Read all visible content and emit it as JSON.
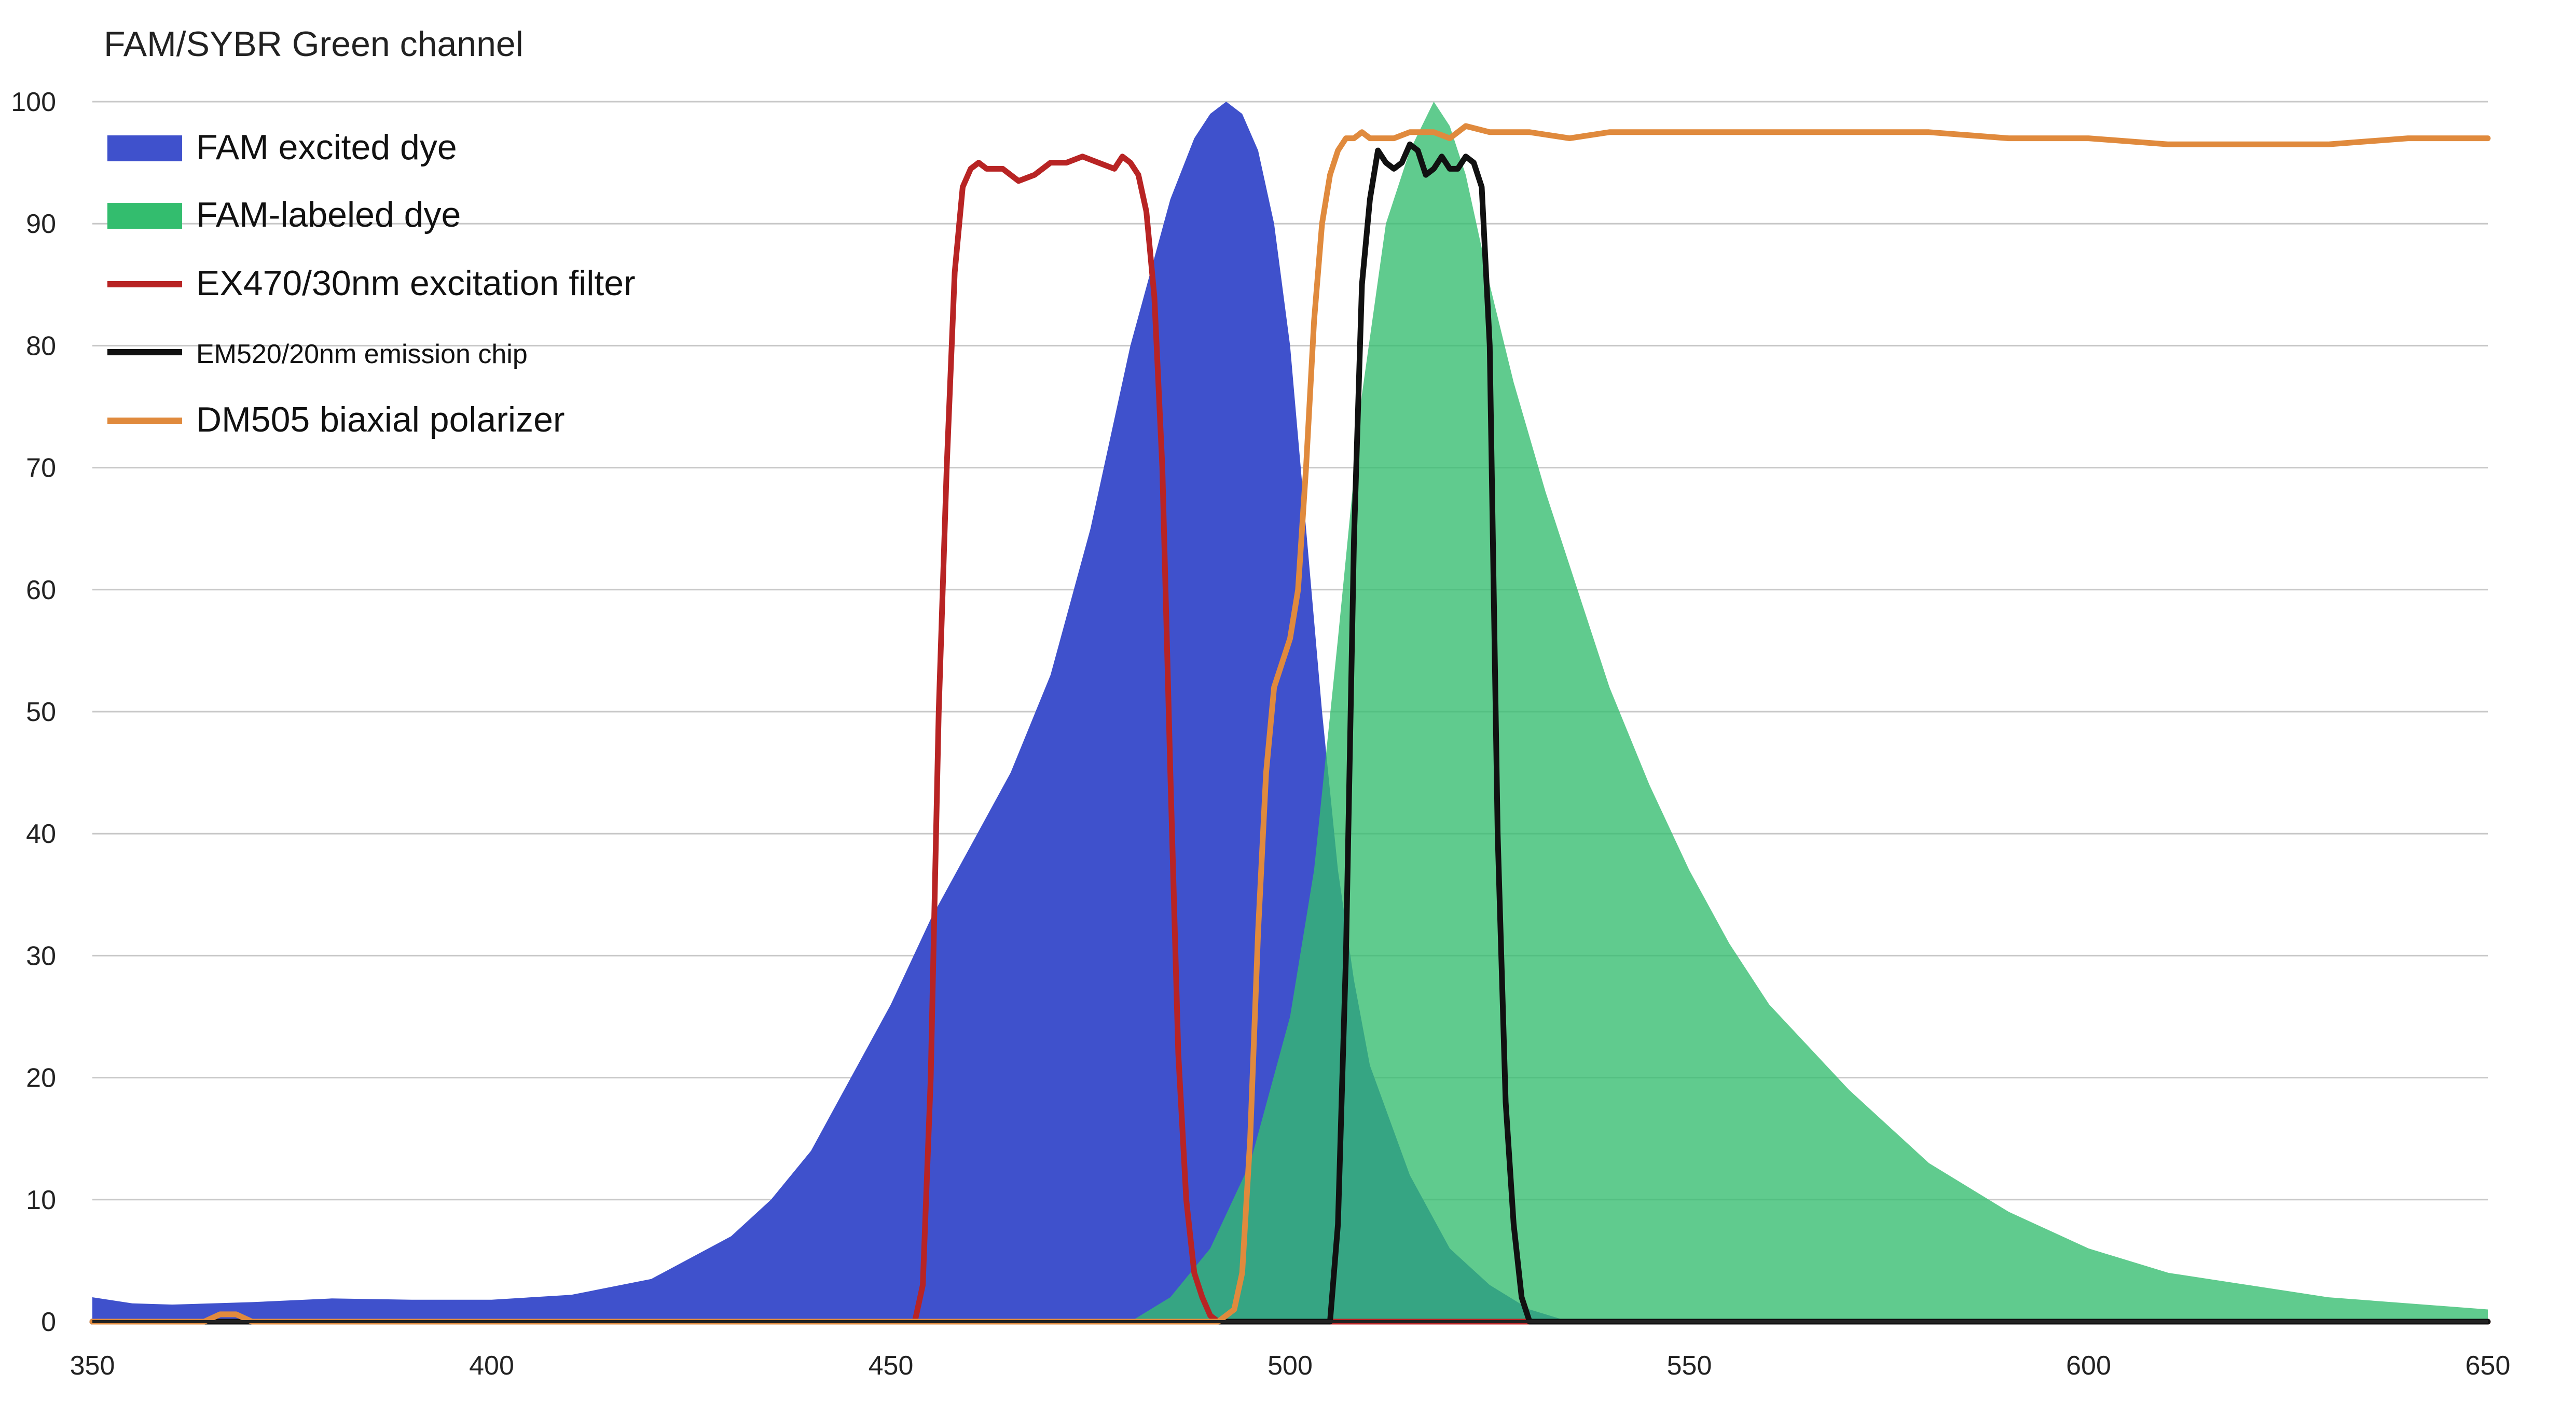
{
  "chart_data": {
    "type": "area",
    "title": "FAM/SYBR Green channel",
    "xlabel": "",
    "ylabel": "",
    "xlim": [
      350,
      650
    ],
    "ylim": [
      0,
      100
    ],
    "x_ticks": [
      350,
      400,
      450,
      500,
      550,
      600,
      650
    ],
    "y_ticks": [
      0,
      10,
      20,
      30,
      40,
      50,
      60,
      70,
      80,
      90,
      100
    ],
    "grid": true,
    "legend_position": "top-left",
    "series": [
      {
        "name": "FAM excited dye",
        "kind": "area",
        "color": "#3f51cc",
        "x": [
          350,
          355,
          360,
          370,
          380,
          390,
          400,
          410,
          420,
          430,
          435,
          440,
          445,
          450,
          455,
          460,
          465,
          470,
          475,
          480,
          485,
          488,
          490,
          492,
          494,
          496,
          498,
          500,
          502,
          504,
          506,
          508,
          510,
          515,
          520,
          525,
          530,
          535
        ],
        "y": [
          2,
          1.5,
          1.4,
          1.6,
          1.9,
          1.8,
          1.8,
          2.2,
          3.5,
          7,
          10,
          14,
          20,
          26,
          33,
          39,
          45,
          53,
          65,
          80,
          92,
          97,
          99,
          100,
          99,
          96,
          90,
          80,
          65,
          50,
          37,
          28,
          21,
          12,
          6,
          3,
          1,
          0
        ]
      },
      {
        "name": "FAM-labeled dye",
        "kind": "area",
        "color": "#33bd6e",
        "x": [
          480,
          485,
          490,
          495,
          500,
          503,
          506,
          509,
          512,
          515,
          518,
          520,
          522,
          525,
          528,
          532,
          536,
          540,
          545,
          550,
          555,
          560,
          570,
          580,
          590,
          600,
          610,
          620,
          630,
          640,
          650
        ],
        "y": [
          0,
          2,
          6,
          13,
          25,
          37,
          56,
          76,
          90,
          96,
          100,
          98,
          94,
          85,
          77,
          68,
          60,
          52,
          44,
          37,
          31,
          26,
          19,
          13,
          9,
          6,
          4,
          3,
          2,
          1.5,
          1
        ]
      },
      {
        "name": "EX470/30nm excitation filter",
        "kind": "line",
        "color": "#b82424",
        "x": [
          350,
          453,
          454,
          455,
          456,
          457,
          458,
          459,
          460,
          461,
          462,
          464,
          466,
          468,
          470,
          472,
          474,
          476,
          478,
          479,
          480,
          481,
          482,
          483,
          484,
          485,
          486,
          487,
          488,
          489,
          490,
          491,
          492,
          650
        ],
        "y": [
          0,
          0,
          3,
          20,
          50,
          70,
          86,
          93,
          94.5,
          95,
          94.5,
          94.5,
          93.5,
          94,
          95,
          95,
          95.5,
          95,
          94.5,
          95.5,
          95,
          94,
          91,
          84,
          70,
          45,
          22,
          10,
          4,
          2,
          0.5,
          0,
          0,
          0
        ]
      },
      {
        "name": "EM520/20nm emission chip",
        "kind": "line",
        "color": "#111111",
        "x": [
          350,
          505,
          506,
          507,
          508,
          509,
          510,
          511,
          512,
          513,
          514,
          515,
          516,
          517,
          518,
          519,
          520,
          521,
          522,
          523,
          524,
          525,
          526,
          527,
          528,
          529,
          530,
          531,
          650
        ],
        "y": [
          0,
          0,
          8,
          30,
          64,
          85,
          92,
          96,
          95,
          94.5,
          95,
          96.5,
          96,
          94,
          94.5,
          95.5,
          94.5,
          94.5,
          95.5,
          95,
          93,
          80,
          40,
          18,
          8,
          2,
          0,
          0,
          0
        ]
      },
      {
        "name": "DM505 biaxial polarizer",
        "kind": "line",
        "color": "#e08a3d",
        "x": [
          350,
          360,
          364,
          366,
          368,
          370,
          372,
          380,
          390,
          400,
          410,
          420,
          430,
          440,
          450,
          460,
          470,
          480,
          490,
          491,
          493,
          494,
          495,
          496,
          497,
          498,
          499,
          500,
          501,
          502,
          503,
          504,
          505,
          506,
          507,
          508,
          509,
          510,
          511,
          513,
          515,
          518,
          520,
          522,
          525,
          530,
          535,
          540,
          545,
          550,
          560,
          570,
          580,
          590,
          600,
          610,
          620,
          630,
          640,
          650
        ],
        "y": [
          0,
          0,
          0,
          0.6,
          0.6,
          0,
          0,
          0,
          0,
          0,
          0,
          0,
          0,
          0,
          0,
          0,
          0,
          0,
          0,
          0,
          1,
          4,
          15,
          32,
          45,
          52,
          54,
          56,
          60,
          70,
          82,
          90,
          94,
          96,
          97,
          97,
          97.5,
          97,
          97,
          97,
          97.5,
          97.5,
          97,
          98,
          97.5,
          97.5,
          97,
          97.5,
          97.5,
          97.5,
          97.5,
          97.5,
          97.5,
          97,
          97,
          96.5,
          96.5,
          96.5,
          97,
          97
        ]
      }
    ]
  }
}
